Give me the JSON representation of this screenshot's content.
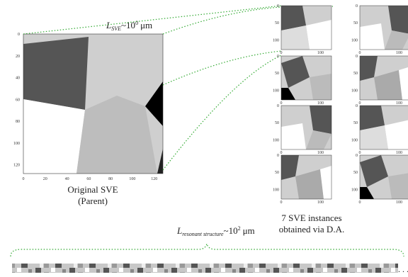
{
  "parent": {
    "label_line1": "Original SVE",
    "label_line2": "(Parent)",
    "xticks": [
      0,
      20,
      40,
      60,
      80,
      100,
      120
    ],
    "yticks": [
      0,
      20,
      40,
      60,
      80,
      100,
      120
    ],
    "length_symbol": "L",
    "length_subscript": "SVE",
    "length_base": "~10",
    "length_exponent": "0",
    "length_unit": "μm"
  },
  "instances": {
    "caption_line1": "7 SVE instances",
    "caption_line2": "obtained via D.A.",
    "yticks": [
      0,
      50,
      100
    ],
    "xticks": [
      0,
      100
    ]
  },
  "structure": {
    "length_symbol": "L",
    "length_subscript": "resonant structure",
    "length_base": "~10",
    "length_exponent": "2",
    "length_unit": "μm",
    "ellipsis": ". . ."
  }
}
